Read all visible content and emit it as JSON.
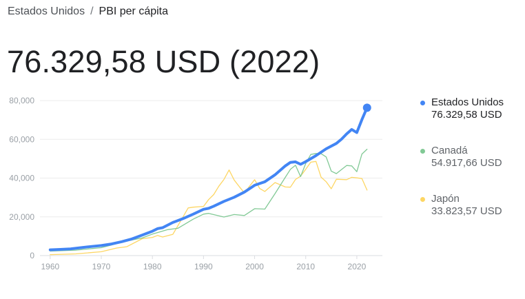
{
  "breadcrumb": {
    "parent": "Estados Unidos",
    "separator": "/",
    "current": "PBI per cápita"
  },
  "headline": "76.329,58 USD (2022)",
  "legend": [
    {
      "name": "Estados Unidos",
      "value": "76.329,58 USD",
      "color": "#4285f4"
    },
    {
      "name": "Canadá",
      "value": "54.917,66 USD",
      "color": "#81c995"
    },
    {
      "name": "Japón",
      "value": "33.823,57 USD",
      "color": "#fdd663"
    }
  ],
  "chart_data": {
    "type": "line",
    "title": "",
    "xlabel": "",
    "ylabel": "",
    "xlim": [
      1958,
      2025
    ],
    "ylim": [
      0,
      80000
    ],
    "x_ticks": [
      1960,
      1970,
      1980,
      1990,
      2000,
      2010,
      2020
    ],
    "y_ticks": [
      0,
      20000,
      40000,
      60000,
      80000
    ],
    "y_tick_labels": [
      "0",
      "20,000",
      "40,000",
      "60,000",
      "80,000"
    ],
    "grid": true,
    "legend_position": "right",
    "series": [
      {
        "name": "Estados Unidos",
        "color": "#4285f4",
        "x": [
          1960,
          1962,
          1964,
          1966,
          1968,
          1970,
          1972,
          1974,
          1976,
          1978,
          1980,
          1981,
          1982,
          1984,
          1986,
          1988,
          1990,
          1991,
          1992,
          1994,
          1996,
          1998,
          2000,
          2002,
          2004,
          2006,
          2007,
          2008,
          2009,
          2010,
          2012,
          2014,
          2016,
          2017,
          2018,
          2019,
          2020,
          2021,
          2022
        ],
        "values": [
          3000,
          3200,
          3500,
          4100,
          4700,
          5200,
          6000,
          7200,
          8600,
          10600,
          12600,
          13900,
          14400,
          17100,
          19100,
          21400,
          23900,
          24400,
          25500,
          28000,
          30100,
          32800,
          36300,
          38100,
          41700,
          46300,
          48100,
          48400,
          47100,
          48500,
          51600,
          55100,
          57900,
          60100,
          62800,
          65100,
          63500,
          70200,
          76300
        ]
      },
      {
        "name": "Canadá",
        "color": "#81c995",
        "x": [
          1960,
          1965,
          1970,
          1975,
          1978,
          1980,
          1983,
          1985,
          1988,
          1990,
          1991,
          1994,
          1996,
          1998,
          2000,
          2002,
          2004,
          2006,
          2007,
          2008,
          2009,
          2010,
          2011,
          2012,
          2013,
          2014,
          2015,
          2016,
          2018,
          2019,
          2020,
          2021,
          2022
        ],
        "values": [
          2300,
          2800,
          4100,
          7500,
          9100,
          11100,
          13400,
          14100,
          18800,
          21400,
          21800,
          19900,
          21200,
          20700,
          24200,
          24000,
          32000,
          40400,
          44500,
          46600,
          40800,
          47500,
          52200,
          52700,
          52600,
          50900,
          43600,
          42300,
          46500,
          46300,
          43300,
          52400,
          54900
        ]
      },
      {
        "name": "Japón",
        "color": "#fdd663",
        "x": [
          1960,
          1965,
          1970,
          1973,
          1975,
          1978,
          1980,
          1981,
          1982,
          1984,
          1986,
          1987,
          1988,
          1990,
          1991,
          1992,
          1993,
          1994,
          1995,
          1996,
          1997,
          1998,
          2000,
          2001,
          2002,
          2004,
          2006,
          2007,
          2008,
          2009,
          2010,
          2011,
          2012,
          2013,
          2014,
          2015,
          2016,
          2018,
          2019,
          2020,
          2021,
          2022
        ],
        "values": [
          500,
          900,
          2000,
          3900,
          4600,
          8700,
          9400,
          10400,
          9600,
          11000,
          20000,
          24600,
          25000,
          25400,
          28900,
          31500,
          35800,
          39300,
          44200,
          39000,
          35600,
          32400,
          39200,
          34600,
          33100,
          37700,
          35400,
          35300,
          39300,
          41000,
          44500,
          48200,
          48600,
          40500,
          38100,
          34500,
          39400,
          39200,
          40400,
          40100,
          39800,
          33800
        ]
      }
    ]
  }
}
